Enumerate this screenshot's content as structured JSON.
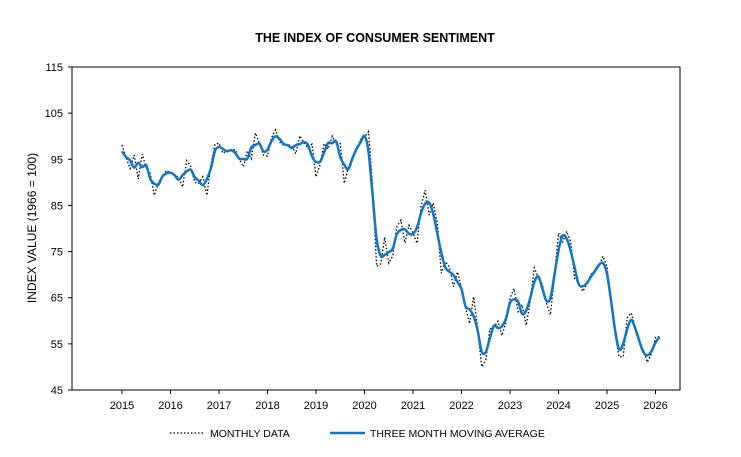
{
  "chart_data": {
    "type": "line",
    "title": "THE INDEX OF CONSUMER SENTIMENT",
    "xlabel": "",
    "ylabel": "INDEX VALUE (1966 = 100)",
    "ylim": [
      45,
      115
    ],
    "yticks": [
      45,
      55,
      65,
      75,
      85,
      95,
      105,
      115
    ],
    "xticks": [
      "2015",
      "2016",
      "2017",
      "2018",
      "2019",
      "2020",
      "2021",
      "2022",
      "2023",
      "2024",
      "2025",
      "2026"
    ],
    "grid": false,
    "legend_position": "bottom",
    "start": "2015-01",
    "frequency": "monthly",
    "series": [
      {
        "name": "MONTHLY DATA",
        "style": "dotted",
        "color": "#000000",
        "values": [
          98.1,
          95.4,
          93.0,
          95.9,
          90.7,
          96.1,
          93.1,
          91.9,
          87.2,
          90.0,
          91.3,
          92.6,
          92.0,
          91.7,
          91.0,
          89.0,
          94.7,
          93.5,
          90.0,
          89.8,
          91.2,
          87.2,
          93.8,
          98.2,
          98.5,
          96.3,
          96.9,
          97.0,
          97.1,
          95.0,
          93.4,
          96.8,
          95.1,
          100.7,
          98.5,
          95.9,
          95.7,
          99.7,
          101.4,
          98.8,
          98.0,
          98.2,
          97.9,
          96.2,
          100.1,
          98.6,
          97.5,
          98.3,
          91.2,
          93.8,
          98.4,
          97.2,
          100.0,
          98.2,
          98.4,
          89.8,
          93.2,
          95.5,
          96.8,
          99.3,
          99.8,
          101.0,
          89.1,
          71.8,
          72.3,
          78.1,
          72.5,
          74.1,
          80.4,
          81.8,
          76.9,
          80.7,
          79.0,
          76.8,
          84.9,
          88.3,
          82.9,
          85.5,
          81.2,
          70.3,
          72.8,
          71.7,
          67.4,
          70.6,
          67.2,
          62.8,
          59.4,
          65.2,
          58.4,
          50.0,
          51.5,
          58.2,
          58.6,
          59.9,
          56.8,
          59.7,
          64.9,
          67.0,
          62.0,
          63.5,
          59.0,
          64.2,
          71.5,
          69.4,
          67.9,
          63.8,
          61.3,
          69.7,
          79.0,
          76.9,
          79.4,
          77.2,
          69.1,
          68.2,
          66.4,
          67.9,
          70.1,
          70.5,
          71.8,
          74.0,
          71.7,
          64.7,
          57.0,
          52.2,
          52.2,
          60.7,
          61.7,
          58.2,
          55.1,
          53.6,
          51.0,
          52.9,
          56.4,
          56.6
        ]
      },
      {
        "name": "THREE MONTH MOVING AVERAGE",
        "style": "solid",
        "color": "#0f75c4",
        "derived_from": "MONTHLY DATA",
        "window": 3
      }
    ]
  }
}
